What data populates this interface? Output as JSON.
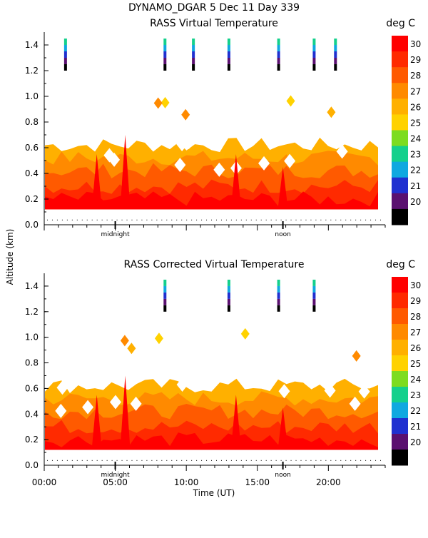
{
  "header": {
    "title": "DYNAMO_DGAR    5 Dec 11  Day 339"
  },
  "colorbar": {
    "unit": "deg C",
    "levels": [
      30,
      29,
      28,
      27,
      26,
      25,
      24,
      23,
      22,
      21,
      20
    ],
    "colors": [
      "#ff0000",
      "#ff2a00",
      "#ff5a00",
      "#ff8a00",
      "#ffb000",
      "#ffd200",
      "#7ddc1f",
      "#14d08c",
      "#10a8e0",
      "#2030d0",
      "#5a1070",
      "#000000"
    ]
  },
  "axes": {
    "ylabel": "Altitude (km)",
    "xlabel": "Time (UT)",
    "yticks": [
      "1.4",
      "1.2",
      "1.0",
      "0.8",
      "0.6",
      "0.4",
      "0.2",
      "0.0"
    ],
    "xticks": [
      "00:00",
      "05:00",
      "10:00",
      "15:00",
      "20:00"
    ],
    "markers": [
      "midnight",
      "noon"
    ]
  },
  "chart_data": [
    {
      "type": "heatmap",
      "title": "RASS Virtual Temperature",
      "xlabel": "Time (UT)",
      "ylabel": "Altitude (km)",
      "xlim": [
        0,
        24
      ],
      "ylim": [
        0,
        1.5
      ],
      "unit": "deg C",
      "z_range": [
        20,
        31
      ],
      "approx_profile": [
        {
          "altitude_km": 0.15,
          "temp_c": 30
        },
        {
          "altitude_km": 0.25,
          "temp_c": 29
        },
        {
          "altitude_km": 0.35,
          "temp_c": 28.5
        },
        {
          "altitude_km": 0.45,
          "temp_c": 28
        },
        {
          "altitude_km": 0.55,
          "temp_c": 27.5
        },
        {
          "altitude_km": 0.65,
          "temp_c": 27
        }
      ],
      "sparse_high_points_hours": [
        1.5,
        8.5,
        10.5,
        13,
        16.5,
        19,
        20.5
      ]
    },
    {
      "type": "heatmap",
      "title": "RASS Corrected Virtual Temperature",
      "xlabel": "Time (UT)",
      "ylabel": "Altitude (km)",
      "xlim": [
        0,
        24
      ],
      "ylim": [
        0,
        1.5
      ],
      "unit": "deg C",
      "z_range": [
        20,
        31
      ],
      "approx_profile": [
        {
          "altitude_km": 0.15,
          "temp_c": 30
        },
        {
          "altitude_km": 0.25,
          "temp_c": 29
        },
        {
          "altitude_km": 0.35,
          "temp_c": 28.5
        },
        {
          "altitude_km": 0.45,
          "temp_c": 28
        },
        {
          "altitude_km": 0.55,
          "temp_c": 27.5
        },
        {
          "altitude_km": 0.65,
          "temp_c": 27
        }
      ],
      "sparse_high_points_hours": [
        8.5,
        13,
        16.5,
        19
      ]
    }
  ]
}
